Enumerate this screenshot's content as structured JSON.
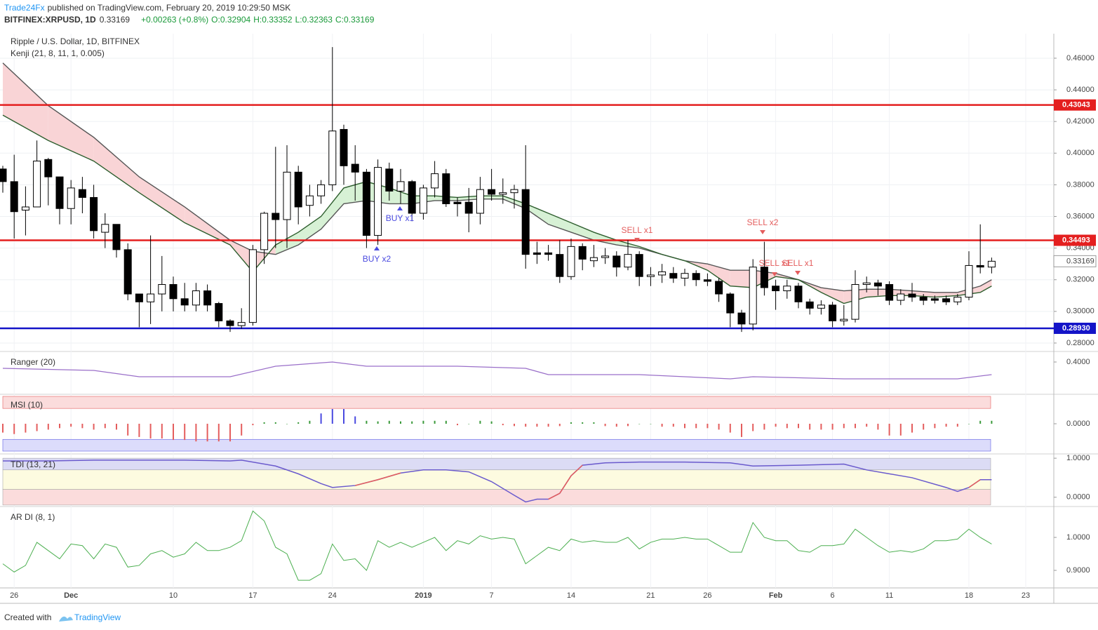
{
  "chart_data": {
    "type": "candlestick",
    "header": {
      "publisher": "Trade24Fx",
      "published": "published on TradingView.com, February 20, 2019 10:29:50 MSK",
      "symbol": "BITFINEX:XRPUSD, 1D",
      "last": "0.33169",
      "change": "+0.00263 (+0.8%)",
      "o": "O:0.32904",
      "h": "H:0.33352",
      "l": "L:0.32363",
      "c": "C:0.33169"
    },
    "title": "Ripple / U.S. Dollar, 1D, BITFINEX",
    "indicator": "Kenji (21, 8, 11, 1, 0.005)",
    "open": [
      0.39,
      0.382,
      0.364,
      0.366,
      0.396,
      0.385,
      0.365,
      0.377,
      0.372,
      0.35,
      0.355,
      0.339,
      0.311,
      0.306,
      0.311,
      0.317,
      0.308,
      0.304,
      0.313,
      0.305,
      0.294,
      0.291,
      0.293,
      0.339,
      0.362,
      0.358,
      0.388,
      0.367,
      0.373,
      0.38,
      0.415,
      0.393,
      0.388,
      0.348,
      0.39,
      0.376,
      0.382,
      0.362,
      0.378,
      0.387,
      0.369,
      0.369,
      0.362,
      0.377,
      0.374,
      0.375,
      0.377,
      0.337,
      0.337,
      0.336,
      0.322,
      0.341,
      0.332,
      0.334,
      0.335,
      0.328,
      0.336,
      0.322,
      0.323,
      0.324,
      0.321,
      0.324,
      0.32,
      0.319,
      0.311,
      0.299,
      0.292,
      0.328,
      0.316,
      0.313,
      0.316,
      0.306,
      0.302,
      0.304,
      0.294,
      0.295,
      0.317,
      0.318,
      0.317,
      0.307,
      0.311,
      0.309,
      0.308,
      0.308,
      0.306,
      0.309,
      0.329,
      0.328
    ],
    "high": [
      0.392,
      0.399,
      0.379,
      0.408,
      0.397,
      0.385,
      0.383,
      0.385,
      0.38,
      0.362,
      0.355,
      0.343,
      0.311,
      0.348,
      0.335,
      0.322,
      0.318,
      0.318,
      0.317,
      0.306,
      0.295,
      0.302,
      0.342,
      0.363,
      0.404,
      0.405,
      0.392,
      0.38,
      0.383,
      0.467,
      0.418,
      0.405,
      0.39,
      0.396,
      0.394,
      0.39,
      0.383,
      0.38,
      0.395,
      0.39,
      0.372,
      0.378,
      0.385,
      0.39,
      0.384,
      0.38,
      0.405,
      0.344,
      0.342,
      0.345,
      0.346,
      0.343,
      0.342,
      0.34,
      0.338,
      0.345,
      0.338,
      0.328,
      0.33,
      0.328,
      0.327,
      0.326,
      0.324,
      0.321,
      0.312,
      0.301,
      0.333,
      0.344,
      0.32,
      0.32,
      0.318,
      0.308,
      0.307,
      0.306,
      0.304,
      0.326,
      0.322,
      0.32,
      0.319,
      0.314,
      0.318,
      0.311,
      0.31,
      0.31,
      0.311,
      0.338,
      0.355,
      0.334
    ],
    "low": [
      0.375,
      0.346,
      0.348,
      0.367,
      0.367,
      0.355,
      0.355,
      0.362,
      0.346,
      0.34,
      0.334,
      0.307,
      0.29,
      0.292,
      0.3,
      0.3,
      0.3,
      0.3,
      0.3,
      0.29,
      0.287,
      0.289,
      0.291,
      0.33,
      0.34,
      0.34,
      0.355,
      0.36,
      0.368,
      0.376,
      0.38,
      0.37,
      0.34,
      0.342,
      0.37,
      0.368,
      0.357,
      0.358,
      0.372,
      0.366,
      0.36,
      0.35,
      0.355,
      0.37,
      0.368,
      0.365,
      0.327,
      0.33,
      0.332,
      0.318,
      0.32,
      0.326,
      0.328,
      0.33,
      0.322,
      0.326,
      0.316,
      0.316,
      0.318,
      0.318,
      0.316,
      0.316,
      0.316,
      0.306,
      0.29,
      0.287,
      0.288,
      0.31,
      0.301,
      0.308,
      0.302,
      0.298,
      0.298,
      0.29,
      0.291,
      0.293,
      0.312,
      0.31,
      0.304,
      0.304,
      0.306,
      0.304,
      0.305,
      0.304,
      0.304,
      0.307,
      0.324,
      0.324
    ],
    "close": [
      0.382,
      0.363,
      0.366,
      0.395,
      0.385,
      0.365,
      0.378,
      0.372,
      0.351,
      0.355,
      0.339,
      0.311,
      0.306,
      0.311,
      0.317,
      0.308,
      0.304,
      0.313,
      0.304,
      0.294,
      0.291,
      0.293,
      0.339,
      0.362,
      0.358,
      0.388,
      0.366,
      0.373,
      0.38,
      0.414,
      0.392,
      0.388,
      0.348,
      0.391,
      0.376,
      0.382,
      0.362,
      0.378,
      0.387,
      0.368,
      0.368,
      0.362,
      0.377,
      0.374,
      0.375,
      0.377,
      0.336,
      0.336,
      0.336,
      0.322,
      0.341,
      0.333,
      0.334,
      0.335,
      0.328,
      0.336,
      0.322,
      0.323,
      0.325,
      0.321,
      0.324,
      0.32,
      0.319,
      0.311,
      0.299,
      0.292,
      0.328,
      0.315,
      0.313,
      0.316,
      0.306,
      0.302,
      0.304,
      0.294,
      0.295,
      0.317,
      0.318,
      0.316,
      0.307,
      0.311,
      0.309,
      0.307,
      0.307,
      0.306,
      0.309,
      0.329,
      0.328,
      0.33169
    ],
    "colors": {
      "up": "#ffffff",
      "down": "#000000"
    },
    "ylim": [
      0.2751,
      0.4755
    ],
    "yticks": [
      {
        "value": 0.28,
        "label": "0.28000"
      },
      {
        "value": 0.3,
        "label": "0.30000"
      },
      {
        "value": 0.32,
        "label": "0.32000"
      },
      {
        "value": 0.34,
        "label": "0.34000"
      },
      {
        "value": 0.36,
        "label": "0.36000"
      },
      {
        "value": 0.38,
        "label": "0.38000"
      },
      {
        "value": 0.4,
        "label": "0.40000"
      },
      {
        "value": 0.42,
        "label": "0.42000"
      },
      {
        "value": 0.44,
        "label": "0.44000"
      },
      {
        "value": 0.46,
        "label": "0.46000"
      }
    ],
    "grid": true,
    "levels": [
      {
        "value": 0.43043,
        "label": "0.43043",
        "color": "#e41f1f"
      },
      {
        "value": 0.34493,
        "label": "0.34493",
        "color": "#e41f1f"
      },
      {
        "value": 0.2893,
        "label": "0.28930",
        "color": "#1414c8"
      }
    ],
    "kenji": {
      "x": [
        0,
        4,
        8,
        12,
        16,
        20,
        22,
        24,
        26,
        28,
        30,
        32,
        34,
        36,
        38,
        40,
        42,
        44,
        46,
        48,
        50,
        52,
        54,
        56,
        58,
        60,
        62,
        64,
        66,
        68,
        70,
        72,
        74,
        76,
        78,
        80,
        82,
        84,
        86,
        87
      ],
      "line1": [
        0.457,
        0.43,
        0.41,
        0.385,
        0.366,
        0.345,
        0.338,
        0.336,
        0.342,
        0.352,
        0.368,
        0.37,
        0.368,
        0.368,
        0.37,
        0.37,
        0.371,
        0.371,
        0.365,
        0.355,
        0.35,
        0.345,
        0.342,
        0.34,
        0.336,
        0.332,
        0.33,
        0.326,
        0.326,
        0.324,
        0.32,
        0.315,
        0.313,
        0.314,
        0.314,
        0.313,
        0.312,
        0.312,
        0.316,
        0.32
      ],
      "line2": [
        0.424,
        0.408,
        0.395,
        0.375,
        0.356,
        0.342,
        0.325,
        0.342,
        0.35,
        0.36,
        0.378,
        0.382,
        0.378,
        0.373,
        0.373,
        0.372,
        0.373,
        0.373,
        0.368,
        0.362,
        0.356,
        0.35,
        0.345,
        0.341,
        0.336,
        0.332,
        0.326,
        0.316,
        0.315,
        0.322,
        0.32,
        0.312,
        0.305,
        0.309,
        0.31,
        0.31,
        0.309,
        0.31,
        0.312,
        0.316
      ],
      "line_color": "#555555",
      "bear_fill": "#f9d4d6",
      "bull_fill": "#d7f1d5"
    },
    "annotations": [
      {
        "text": "BUY x1",
        "color": "#4a4ae0"
      },
      {
        "text": "BUY x2",
        "color": "#4a4ae0"
      },
      {
        "text": "SELL x1",
        "color": "#e45d5d"
      },
      {
        "text": "SELL x2",
        "color": "#e45d5d"
      },
      {
        "text": "SELL x1",
        "color": "#e45d5d"
      },
      {
        "text": "SELL x1",
        "color": "#e45d5d"
      }
    ],
    "xticks": [
      {
        "value": 1,
        "label": "26"
      },
      {
        "value": 6,
        "label": "Dec"
      },
      {
        "value": 15,
        "label": "10"
      },
      {
        "value": 22,
        "label": "17"
      },
      {
        "value": 29,
        "label": "24"
      },
      {
        "value": 37,
        "label": "2019"
      },
      {
        "value": 43,
        "label": "7"
      },
      {
        "value": 50,
        "label": "14"
      },
      {
        "value": 57,
        "label": "21"
      },
      {
        "value": 62,
        "label": "26"
      },
      {
        "value": 68,
        "label": "Feb"
      },
      {
        "value": 73,
        "label": "6"
      },
      {
        "value": 78,
        "label": "11"
      },
      {
        "value": 85,
        "label": "18"
      },
      {
        "value": 90,
        "label": "23"
      }
    ],
    "panes": {
      "ranger": {
        "label": "Ranger (20)",
        "x": [
          0,
          8,
          12,
          20,
          24,
          29,
          32,
          40,
          46,
          48,
          56,
          64,
          66,
          74,
          84,
          87
        ],
        "values": [
          0.37,
          0.36,
          0.33,
          0.33,
          0.38,
          0.4,
          0.38,
          0.38,
          0.37,
          0.34,
          0.34,
          0.32,
          0.33,
          0.32,
          0.32,
          0.34
        ],
        "color": "#9a6fc9",
        "ylim": [
          0.25,
          0.45
        ],
        "yticks": [
          {
            "value": 0.4,
            "label": "0.4000"
          }
        ]
      },
      "msi": {
        "label": "MSI (10)",
        "values": [
          -0.3,
          -0.35,
          -0.3,
          -0.25,
          -0.2,
          -0.15,
          -0.1,
          -0.15,
          -0.2,
          -0.15,
          -0.2,
          -0.4,
          -0.45,
          -0.5,
          -0.5,
          -0.55,
          -0.55,
          -0.6,
          -0.6,
          -0.6,
          -0.6,
          -0.4,
          -0.05,
          0.05,
          0.05,
          0,
          0.05,
          0.1,
          0.35,
          0.5,
          0.5,
          0.25,
          0.1,
          0.08,
          0.1,
          0.08,
          0.08,
          0.1,
          0.1,
          0.1,
          -0.05,
          0,
          0.1,
          0.08,
          -0.05,
          -0.08,
          -0.1,
          -0.1,
          -0.1,
          -0.08,
          0.05,
          0.05,
          0.05,
          -0.08,
          -0.1,
          -0.08,
          0,
          0,
          -0.1,
          -0.1,
          -0.15,
          -0.15,
          -0.15,
          -0.2,
          -0.3,
          -0.45,
          -0.25,
          -0.2,
          -0.1,
          -0.15,
          -0.15,
          -0.2,
          -0.2,
          -0.2,
          -0.15,
          -0.15,
          -0.1,
          -0.2,
          -0.4,
          -0.4,
          -0.3,
          -0.2,
          -0.15,
          -0.1,
          -0.1,
          0,
          0.1,
          0.1
        ],
        "ylim": [
          -1,
          1
        ],
        "yticks": [
          {
            "value": 0,
            "label": "0.0000"
          }
        ],
        "levels": [
          0.52,
          -0.53
        ]
      },
      "tdi": {
        "label": "TDI (13, 21)",
        "x": [
          0,
          4,
          8,
          12,
          16,
          20,
          21,
          24,
          26,
          28,
          29,
          31,
          33,
          35,
          37,
          39,
          41,
          43,
          45,
          46,
          47,
          48,
          49,
          50,
          51,
          53,
          56,
          60,
          64,
          66,
          70,
          74,
          76,
          78,
          80,
          83,
          84,
          85,
          86,
          87
        ],
        "values": [
          0.93,
          0.93,
          0.95,
          0.95,
          0.95,
          0.93,
          0.95,
          0.8,
          0.6,
          0.35,
          0.25,
          0.3,
          0.45,
          0.62,
          0.7,
          0.7,
          0.65,
          0.4,
          0.05,
          -0.12,
          -0.05,
          -0.05,
          0.1,
          0.55,
          0.82,
          0.88,
          0.9,
          0.9,
          0.88,
          0.8,
          0.82,
          0.85,
          0.7,
          0.6,
          0.5,
          0.25,
          0.15,
          0.25,
          0.45,
          0.45
        ],
        "ylim": [
          -0.22,
          1.11
        ],
        "yticks": [
          {
            "value": 1,
            "label": "1.0000"
          },
          {
            "value": 0,
            "label": "0.0000"
          }
        ],
        "levels": [
          1,
          0.7,
          0.2,
          -0.2
        ]
      },
      "ardi": {
        "label": "AR DI (8, 1)",
        "values": [
          0.92,
          0.895,
          0.915,
          0.985,
          0.96,
          0.935,
          0.98,
          0.975,
          0.935,
          0.98,
          0.97,
          0.91,
          0.915,
          0.95,
          0.96,
          0.94,
          0.95,
          0.985,
          0.96,
          0.96,
          0.97,
          0.99,
          1.08,
          1.05,
          0.97,
          0.95,
          0.87,
          0.87,
          0.89,
          0.98,
          0.93,
          0.935,
          0.9,
          0.99,
          0.97,
          0.985,
          0.97,
          0.985,
          1.0,
          0.96,
          0.99,
          0.98,
          1.005,
          0.995,
          1.0,
          0.995,
          0.92,
          0.945,
          0.97,
          0.96,
          0.995,
          0.985,
          0.99,
          0.985,
          0.985,
          1.0,
          0.965,
          0.985,
          0.995,
          0.995,
          1.0,
          0.995,
          0.995,
          0.975,
          0.955,
          0.955,
          1.045,
          1.0,
          0.99,
          0.99,
          0.96,
          0.955,
          0.975,
          0.975,
          0.98,
          1.025,
          1.0,
          0.975,
          0.955,
          0.96,
          0.955,
          0.965,
          0.99,
          0.99,
          0.995,
          1.025,
          1.0,
          0.98
        ],
        "color": "#4caf50",
        "ylim": [
          0.8468,
          1.0936
        ],
        "yticks": [
          {
            "value": 1,
            "label": "1.0000"
          },
          {
            "value": 0.9,
            "label": "0.9000"
          }
        ]
      }
    },
    "footer": {
      "created": "Created with",
      "brand": "TradingView"
    }
  }
}
